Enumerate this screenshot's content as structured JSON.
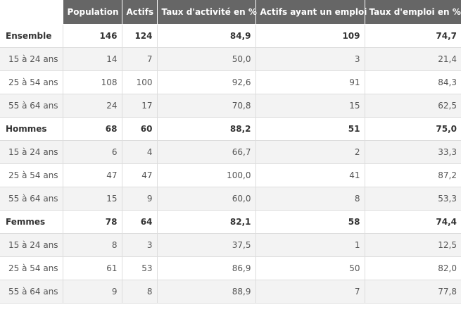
{
  "table": {
    "headers": [
      "",
      "Population",
      "Actifs",
      "Taux d'activité en %",
      "Actifs ayant un emploi",
      "Taux d'emploi en %"
    ],
    "rows": [
      {
        "label": "Ensemble",
        "group": true,
        "cells": [
          "146",
          "124",
          "84,9",
          "109",
          "74,7"
        ]
      },
      {
        "label": "15 à 24 ans",
        "group": false,
        "cells": [
          "14",
          "7",
          "50,0",
          "3",
          "21,4"
        ]
      },
      {
        "label": "25 à 54 ans",
        "group": false,
        "cells": [
          "108",
          "100",
          "92,6",
          "91",
          "84,3"
        ]
      },
      {
        "label": "55 à 64 ans",
        "group": false,
        "cells": [
          "24",
          "17",
          "70,8",
          "15",
          "62,5"
        ]
      },
      {
        "label": "Hommes",
        "group": true,
        "cells": [
          "68",
          "60",
          "88,2",
          "51",
          "75,0"
        ]
      },
      {
        "label": "15 à 24 ans",
        "group": false,
        "cells": [
          "6",
          "4",
          "66,7",
          "2",
          "33,3"
        ]
      },
      {
        "label": "25 à 54 ans",
        "group": false,
        "cells": [
          "47",
          "47",
          "100,0",
          "41",
          "87,2"
        ]
      },
      {
        "label": "55 à 64 ans",
        "group": false,
        "cells": [
          "15",
          "9",
          "60,0",
          "8",
          "53,3"
        ]
      },
      {
        "label": "Femmes",
        "group": true,
        "cells": [
          "78",
          "64",
          "82,1",
          "58",
          "74,4"
        ]
      },
      {
        "label": "15 à 24 ans",
        "group": false,
        "cells": [
          "8",
          "3",
          "37,5",
          "1",
          "12,5"
        ]
      },
      {
        "label": "25 à 54 ans",
        "group": false,
        "cells": [
          "61",
          "53",
          "86,9",
          "50",
          "82,0"
        ]
      },
      {
        "label": "55 à 64 ans",
        "group": false,
        "cells": [
          "9",
          "8",
          "88,9",
          "7",
          "77,8"
        ]
      }
    ]
  }
}
